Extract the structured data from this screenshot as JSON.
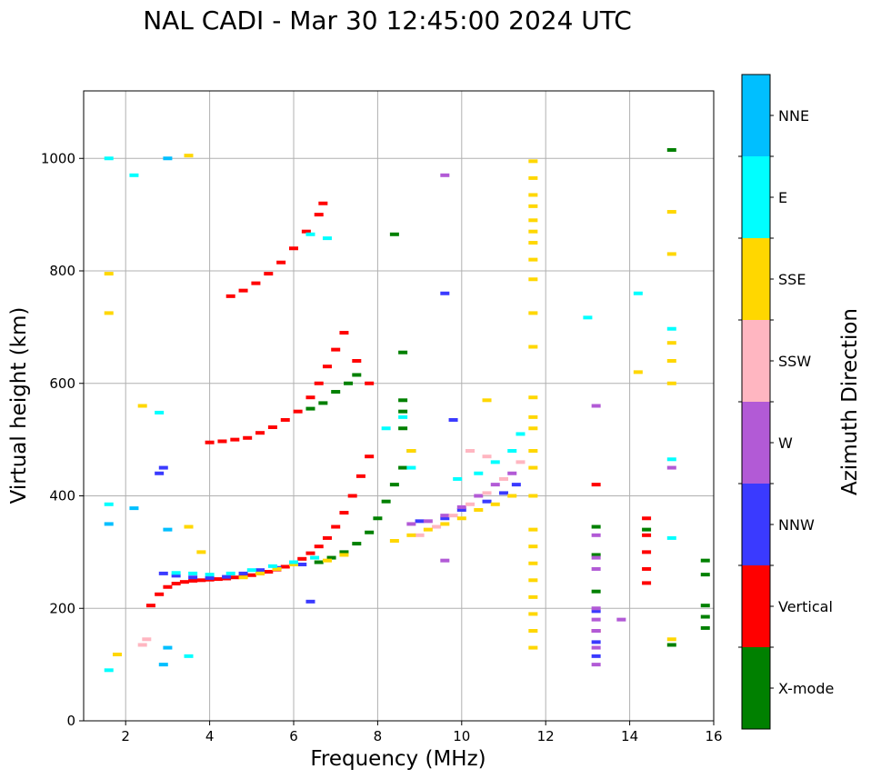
{
  "chart_data": {
    "type": "scatter",
    "title": "NAL CADI - Mar 30 12:45:00 2024 UTC",
    "xlabel": "Frequency (MHz)",
    "ylabel": "Virtual height (km)",
    "xlim": [
      1,
      16
    ],
    "ylim": [
      0,
      1120
    ],
    "xticks": [
      2,
      4,
      6,
      8,
      10,
      12,
      14,
      16
    ],
    "yticks": [
      0,
      200,
      400,
      600,
      800,
      1000
    ],
    "grid": true,
    "colorbar": {
      "label": "Azimuth Direction",
      "categories": [
        "X-mode",
        "Vertical",
        "NNW",
        "W",
        "SSW",
        "SSE",
        "E",
        "NNE"
      ],
      "colors": {
        "X-mode": "#008000",
        "Vertical": "#ff0000",
        "NNW": "#3a3aff",
        "W": "#b25ad6",
        "SSW": "#ffb6c1",
        "SSE": "#ffd700",
        "E": "#00ffff",
        "NNE": "#00bfff"
      }
    },
    "series": [
      {
        "name": "Vertical",
        "points": [
          [
            2.6,
            205
          ],
          [
            2.8,
            225
          ],
          [
            3.0,
            238
          ],
          [
            3.2,
            244
          ],
          [
            3.4,
            247
          ],
          [
            3.6,
            249
          ],
          [
            3.8,
            250
          ],
          [
            4.0,
            251
          ],
          [
            4.2,
            252
          ],
          [
            4.4,
            253
          ],
          [
            4.6,
            255
          ],
          [
            4.8,
            257
          ],
          [
            5.0,
            259
          ],
          [
            5.2,
            262
          ],
          [
            5.4,
            265
          ],
          [
            5.6,
            269
          ],
          [
            5.8,
            274
          ],
          [
            6.0,
            280
          ],
          [
            6.2,
            288
          ],
          [
            6.4,
            298
          ],
          [
            6.6,
            310
          ],
          [
            6.8,
            325
          ],
          [
            7.0,
            345
          ],
          [
            7.2,
            370
          ],
          [
            7.4,
            400
          ],
          [
            7.6,
            435
          ],
          [
            7.8,
            470
          ],
          [
            4.0,
            495
          ],
          [
            4.3,
            497
          ],
          [
            4.6,
            500
          ],
          [
            4.9,
            503
          ],
          [
            5.2,
            512
          ],
          [
            5.5,
            522
          ],
          [
            5.8,
            535
          ],
          [
            6.1,
            550
          ],
          [
            6.4,
            575
          ],
          [
            6.6,
            600
          ],
          [
            6.8,
            630
          ],
          [
            7.0,
            660
          ],
          [
            7.2,
            690
          ],
          [
            7.5,
            640
          ],
          [
            7.8,
            600
          ],
          [
            4.5,
            755
          ],
          [
            4.8,
            765
          ],
          [
            5.1,
            778
          ],
          [
            5.4,
            795
          ],
          [
            5.7,
            815
          ],
          [
            6.0,
            840
          ],
          [
            6.3,
            870
          ],
          [
            6.6,
            900
          ],
          [
            6.7,
            920
          ],
          [
            14.4,
            360
          ],
          [
            14.4,
            330
          ],
          [
            14.4,
            300
          ],
          [
            14.4,
            270
          ],
          [
            14.4,
            245
          ],
          [
            13.2,
            420
          ],
          [
            13.2,
            160
          ]
        ]
      },
      {
        "name": "X-mode",
        "points": [
          [
            6.6,
            282
          ],
          [
            6.9,
            290
          ],
          [
            7.2,
            300
          ],
          [
            7.5,
            315
          ],
          [
            7.8,
            335
          ],
          [
            8.0,
            360
          ],
          [
            8.2,
            390
          ],
          [
            8.4,
            420
          ],
          [
            8.6,
            450
          ],
          [
            8.8,
            480
          ],
          [
            8.6,
            520
          ],
          [
            8.6,
            550
          ],
          [
            8.6,
            570
          ],
          [
            8.6,
            655
          ],
          [
            8.4,
            865
          ],
          [
            6.4,
            555
          ],
          [
            6.7,
            565
          ],
          [
            7.0,
            585
          ],
          [
            7.3,
            600
          ],
          [
            7.5,
            615
          ],
          [
            15.0,
            135
          ],
          [
            15.8,
            165
          ],
          [
            15.8,
            185
          ],
          [
            15.8,
            205
          ],
          [
            15.8,
            260
          ],
          [
            15.8,
            285
          ],
          [
            14.4,
            340
          ],
          [
            13.2,
            345
          ],
          [
            13.2,
            295
          ],
          [
            13.2,
            230
          ],
          [
            15.0,
            1015
          ]
        ]
      },
      {
        "name": "NNW",
        "points": [
          [
            2.9,
            262
          ],
          [
            3.2,
            258
          ],
          [
            3.6,
            255
          ],
          [
            4.0,
            254
          ],
          [
            4.4,
            256
          ],
          [
            4.8,
            262
          ],
          [
            5.2,
            268
          ],
          [
            5.6,
            272
          ],
          [
            6.2,
            278
          ],
          [
            9.0,
            355
          ],
          [
            9.6,
            360
          ],
          [
            10.0,
            375
          ],
          [
            10.6,
            390
          ],
          [
            11.0,
            405
          ],
          [
            11.3,
            420
          ],
          [
            2.8,
            440
          ],
          [
            2.9,
            450
          ],
          [
            9.6,
            760
          ],
          [
            13.2,
            195
          ],
          [
            13.2,
            140
          ],
          [
            13.2,
            115
          ],
          [
            6.4,
            212
          ],
          [
            9.8,
            535
          ]
        ]
      },
      {
        "name": "W",
        "points": [
          [
            8.8,
            350
          ],
          [
            9.2,
            355
          ],
          [
            9.6,
            365
          ],
          [
            10.0,
            380
          ],
          [
            10.4,
            400
          ],
          [
            10.8,
            420
          ],
          [
            11.2,
            440
          ],
          [
            13.2,
            330
          ],
          [
            13.2,
            290
          ],
          [
            13.2,
            270
          ],
          [
            13.2,
            200
          ],
          [
            13.2,
            180
          ],
          [
            13.2,
            160
          ],
          [
            13.2,
            130
          ],
          [
            13.2,
            100
          ],
          [
            13.2,
            560
          ],
          [
            13.8,
            180
          ],
          [
            9.6,
            970
          ],
          [
            9.6,
            285
          ],
          [
            15.0,
            450
          ]
        ]
      },
      {
        "name": "SSW",
        "points": [
          [
            2.4,
            135
          ],
          [
            2.5,
            145
          ],
          [
            9.0,
            330
          ],
          [
            9.4,
            345
          ],
          [
            9.8,
            365
          ],
          [
            10.2,
            385
          ],
          [
            10.6,
            405
          ],
          [
            11.0,
            430
          ],
          [
            11.4,
            460
          ],
          [
            10.2,
            480
          ],
          [
            10.6,
            470
          ]
        ]
      },
      {
        "name": "SSE",
        "points": [
          [
            4.8,
            255
          ],
          [
            5.2,
            262
          ],
          [
            5.6,
            270
          ],
          [
            6.0,
            278
          ],
          [
            6.8,
            285
          ],
          [
            7.2,
            295
          ],
          [
            8.4,
            320
          ],
          [
            8.8,
            330
          ],
          [
            9.2,
            340
          ],
          [
            9.6,
            350
          ],
          [
            10.0,
            360
          ],
          [
            10.4,
            375
          ],
          [
            10.8,
            385
          ],
          [
            11.2,
            400
          ],
          [
            8.8,
            480
          ],
          [
            10.6,
            570
          ],
          [
            11.7,
            130
          ],
          [
            11.7,
            160
          ],
          [
            11.7,
            190
          ],
          [
            11.7,
            220
          ],
          [
            11.7,
            250
          ],
          [
            11.7,
            280
          ],
          [
            11.7,
            310
          ],
          [
            11.7,
            340
          ],
          [
            11.7,
            400
          ],
          [
            11.7,
            450
          ],
          [
            11.7,
            480
          ],
          [
            11.7,
            520
          ],
          [
            11.7,
            540
          ],
          [
            11.7,
            575
          ],
          [
            11.7,
            665
          ],
          [
            11.7,
            725
          ],
          [
            11.7,
            785
          ],
          [
            11.7,
            820
          ],
          [
            11.7,
            850
          ],
          [
            11.7,
            870
          ],
          [
            11.7,
            890
          ],
          [
            11.7,
            915
          ],
          [
            11.7,
            935
          ],
          [
            11.7,
            965
          ],
          [
            11.7,
            995
          ],
          [
            15.0,
            145
          ],
          [
            15.0,
            600
          ],
          [
            15.0,
            640
          ],
          [
            15.0,
            672
          ],
          [
            15.0,
            830
          ],
          [
            15.0,
            905
          ],
          [
            14.2,
            620
          ],
          [
            3.5,
            345
          ],
          [
            3.5,
            1005
          ],
          [
            1.6,
            795
          ],
          [
            1.6,
            725
          ],
          [
            2.4,
            560
          ],
          [
            1.8,
            118
          ],
          [
            3.8,
            300
          ]
        ]
      },
      {
        "name": "E",
        "points": [
          [
            3.2,
            263
          ],
          [
            3.6,
            262
          ],
          [
            4.0,
            260
          ],
          [
            4.5,
            262
          ],
          [
            5.0,
            268
          ],
          [
            5.5,
            275
          ],
          [
            6.0,
            282
          ],
          [
            6.5,
            290
          ],
          [
            9.9,
            430
          ],
          [
            10.4,
            440
          ],
          [
            10.8,
            460
          ],
          [
            11.2,
            480
          ],
          [
            11.4,
            510
          ],
          [
            8.2,
            520
          ],
          [
            8.6,
            540
          ],
          [
            8.8,
            450
          ],
          [
            13.0,
            717
          ],
          [
            14.2,
            760
          ],
          [
            15.0,
            325
          ],
          [
            15.0,
            465
          ],
          [
            15.0,
            697
          ],
          [
            1.6,
            90
          ],
          [
            1.6,
            385
          ],
          [
            1.6,
            1000
          ],
          [
            2.2,
            970
          ],
          [
            3.5,
            115
          ],
          [
            6.4,
            865
          ],
          [
            6.8,
            858
          ],
          [
            2.8,
            548
          ]
        ]
      },
      {
        "name": "NNE",
        "points": [
          [
            3.0,
            1000
          ],
          [
            2.2,
            378
          ],
          [
            1.6,
            350
          ],
          [
            3.0,
            340
          ],
          [
            3.0,
            130
          ],
          [
            2.9,
            100
          ]
        ]
      }
    ]
  }
}
